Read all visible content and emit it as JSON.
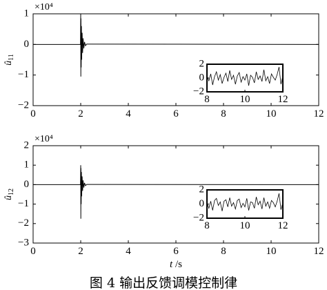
{
  "caption": "图 4  输出反馈调模控制律",
  "chart_data": [
    {
      "type": "line",
      "title": "",
      "ylabel": "û11",
      "ylabel_base": "û",
      "ylabel_sub": "11",
      "xlabel": "",
      "exponent_label": "×10⁴",
      "xlim": [
        0,
        12
      ],
      "ylim": [
        -2,
        1
      ],
      "xticks": [
        0,
        2,
        4,
        6,
        8,
        10,
        12
      ],
      "yticks": [
        -2,
        -1,
        0,
        1
      ],
      "xtick_labels": [
        "0",
        "2",
        "4",
        "6",
        "8",
        "10",
        "12"
      ],
      "ytick_labels": [
        "−2",
        "−1",
        "0",
        "1"
      ],
      "series": [
        {
          "x": [
            0,
            1.99,
            2.0,
            2.005,
            2.01,
            2.02,
            2.03,
            2.04,
            2.06,
            2.08,
            2.1,
            2.13,
            2.16,
            2.2,
            2.25,
            12
          ],
          "y": [
            0,
            0,
            1.0,
            -1.05,
            0.85,
            -0.75,
            0.6,
            -0.5,
            0.38,
            -0.28,
            0.2,
            -0.13,
            0.08,
            -0.04,
            0.01,
            0
          ]
        }
      ],
      "inset": {
        "xlim": [
          8,
          12
        ],
        "ylim": [
          -2,
          2
        ],
        "xticks": [
          8,
          10,
          12
        ],
        "yticks": [
          -2,
          0,
          2
        ],
        "xtick_labels": [
          "8",
          "10",
          "12"
        ],
        "ytick_labels": [
          "−2",
          "0",
          "2"
        ],
        "x": [
          8.0,
          8.1,
          8.2,
          8.3,
          8.4,
          8.5,
          8.6,
          8.7,
          8.8,
          8.9,
          9.0,
          9.1,
          9.2,
          9.3,
          9.4,
          9.5,
          9.6,
          9.7,
          9.8,
          9.9,
          10.0,
          10.1,
          10.2,
          10.3,
          10.4,
          10.5,
          10.6,
          10.7,
          10.8,
          10.9,
          11.0,
          11.1,
          11.2,
          11.3,
          11.4,
          11.5,
          11.6,
          11.7,
          11.8,
          11.9,
          12.0
        ],
        "y": [
          0.3,
          -0.4,
          0.6,
          -1.0,
          0.2,
          0.9,
          -0.3,
          0.5,
          -0.8,
          0.1,
          0.7,
          -0.5,
          1.1,
          -0.2,
          0.4,
          -0.9,
          0.3,
          0.8,
          -0.6,
          0.2,
          -0.3,
          0.6,
          -1.1,
          0.4,
          0.1,
          -0.7,
          0.9,
          -0.2,
          0.3,
          -0.5,
          1.2,
          -0.4,
          0.2,
          -0.8,
          0.6,
          0.1,
          -0.3,
          0.5,
          1.6,
          -0.9,
          0.3
        ]
      }
    },
    {
      "type": "line",
      "title": "",
      "ylabel": "û12",
      "ylabel_base": "û",
      "ylabel_sub": "12",
      "xlabel": "t /s",
      "exponent_label": "×10⁴",
      "xlim": [
        0,
        12
      ],
      "ylim": [
        -3,
        2
      ],
      "xticks": [
        0,
        2,
        4,
        6,
        8,
        10,
        12
      ],
      "yticks": [
        -3,
        -2,
        -1,
        0,
        1,
        2
      ],
      "xtick_labels": [
        "0",
        "2",
        "4",
        "6",
        "8",
        "10",
        "12"
      ],
      "ytick_labels": [
        "−3",
        "−2",
        "−1",
        "0",
        "1",
        "2"
      ],
      "series": [
        {
          "x": [
            0,
            1.99,
            2.0,
            2.005,
            2.01,
            2.02,
            2.03,
            2.04,
            2.06,
            2.08,
            2.1,
            2.13,
            2.16,
            2.2,
            2.25,
            12
          ],
          "y": [
            0,
            0,
            1.0,
            -1.75,
            0.85,
            -1.0,
            0.65,
            -0.6,
            0.42,
            -0.32,
            0.22,
            -0.15,
            0.09,
            -0.05,
            0.01,
            0
          ]
        }
      ],
      "inset": {
        "xlim": [
          8,
          12
        ],
        "ylim": [
          -2,
          2
        ],
        "xticks": [
          8,
          10,
          12
        ],
        "yticks": [
          -2,
          0,
          2
        ],
        "xtick_labels": [
          "8",
          "10",
          "12"
        ],
        "ytick_labels": [
          "−2",
          "0",
          "2"
        ],
        "x": [
          8.0,
          8.1,
          8.2,
          8.3,
          8.4,
          8.5,
          8.6,
          8.7,
          8.8,
          8.9,
          9.0,
          9.1,
          9.2,
          9.3,
          9.4,
          9.5,
          9.6,
          9.7,
          9.8,
          9.9,
          10.0,
          10.1,
          10.2,
          10.3,
          10.4,
          10.5,
          10.6,
          10.7,
          10.8,
          10.9,
          11.0,
          11.1,
          11.2,
          11.3,
          11.4,
          11.5,
          11.6,
          11.7,
          11.8,
          11.9,
          12.0
        ],
        "y": [
          0.2,
          -0.6,
          0.4,
          -0.9,
          0.5,
          0.8,
          -0.2,
          0.3,
          -1.0,
          0.4,
          0.6,
          -0.4,
          0.9,
          -0.3,
          0.2,
          -0.7,
          0.5,
          0.7,
          -0.5,
          0.1,
          -0.4,
          0.8,
          -0.9,
          0.3,
          0.2,
          -0.6,
          1.0,
          -0.1,
          0.4,
          -0.7,
          0.9,
          -0.3,
          0.3,
          -0.6,
          0.5,
          0.2,
          -0.4,
          0.4,
          1.5,
          -0.8,
          0.2
        ]
      }
    }
  ]
}
